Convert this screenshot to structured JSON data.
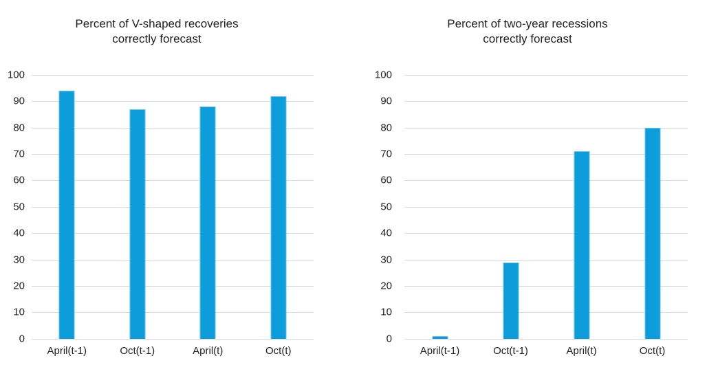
{
  "page": {
    "background": "#ffffff"
  },
  "colors": {
    "bar": "#0d9ddb",
    "bar_edge": "#63c2ea",
    "gridline": "#d9d9d9",
    "text": "#1f1f1f"
  },
  "chart_data": [
    {
      "type": "bar",
      "title": "Percent of V-shaped recoveries correctly forecast",
      "title_lines": [
        "Percent of V-shaped recoveries",
        "correctly forecast"
      ],
      "categories": [
        "April(t-1)",
        "Oct(t-1)",
        "April(t)",
        "Oct(t)"
      ],
      "values": [
        94,
        87,
        88,
        92
      ],
      "xlabel": "",
      "ylabel": "",
      "ylim": [
        0,
        100
      ],
      "yticks": [
        100,
        90,
        80,
        70,
        60,
        50,
        40,
        30,
        20,
        10,
        0
      ],
      "grid": true,
      "legend_position": "none"
    },
    {
      "type": "bar",
      "title": "Percent of two-year recessions correctly forecast",
      "title_lines": [
        "Percent of two-year recessions",
        "correctly forecast"
      ],
      "categories": [
        "April(t-1)",
        "Oct(t-1)",
        "April(t)",
        "Oct(t)"
      ],
      "values": [
        1,
        29,
        71,
        80
      ],
      "xlabel": "",
      "ylabel": "",
      "ylim": [
        0,
        100
      ],
      "yticks": [
        100,
        90,
        80,
        70,
        60,
        50,
        40,
        30,
        20,
        10,
        0
      ],
      "grid": true,
      "legend_position": "none"
    }
  ]
}
